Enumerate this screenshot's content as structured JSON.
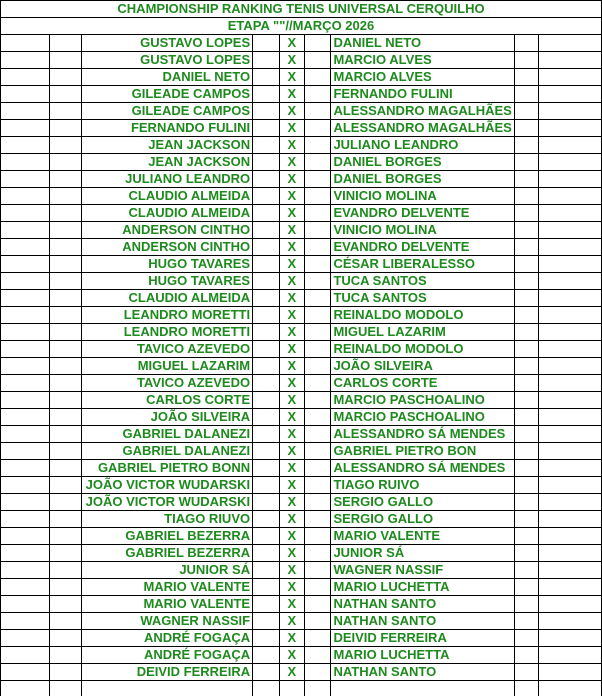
{
  "title": "CHAMPIONSHIP RANKING TENIS UNIVERSAL CERQUILHO",
  "subtitle": "ETAPA \"\"//MARÇO 2026",
  "text_color": "#1e8a1e",
  "matches": [
    {
      "p1": "GUSTAVO LOPES",
      "vs": "X",
      "p2": "DANIEL NETO"
    },
    {
      "p1": "GUSTAVO LOPES",
      "vs": "X",
      "p2": "MARCIO ALVES"
    },
    {
      "p1": "DANIEL NETO",
      "vs": "X",
      "p2": "MARCIO ALVES"
    },
    {
      "p1": "GILEADE CAMPOS",
      "vs": "X",
      "p2": "FERNANDO FULINI"
    },
    {
      "p1": "GILEADE CAMPOS",
      "vs": "X",
      "p2": "ALESSANDRO MAGALHÃES"
    },
    {
      "p1": "FERNANDO FULINI",
      "vs": "X",
      "p2": "ALESSANDRO MAGALHÃES"
    },
    {
      "p1": "JEAN JACKSON",
      "vs": "X",
      "p2": "JULIANO LEANDRO"
    },
    {
      "p1": "JEAN JACKSON",
      "vs": "X",
      "p2": "DANIEL BORGES"
    },
    {
      "p1": "JULIANO LEANDRO",
      "vs": "X",
      "p2": "DANIEL BORGES"
    },
    {
      "p1": "CLAUDIO ALMEIDA",
      "vs": "X",
      "p2": "VINICIO MOLINA"
    },
    {
      "p1": "CLAUDIO ALMEIDA",
      "vs": "X",
      "p2": "EVANDRO DELVENTE"
    },
    {
      "p1": "ANDERSON CINTHO",
      "vs": "X",
      "p2": "VINICIO MOLINA"
    },
    {
      "p1": "ANDERSON CINTHO",
      "vs": "X",
      "p2": "EVANDRO DELVENTE"
    },
    {
      "p1": "HUGO TAVARES",
      "vs": "X",
      "p2": "CÉSAR LIBERALESSO"
    },
    {
      "p1": "HUGO TAVARES",
      "vs": "X",
      "p2": "TUCA SANTOS"
    },
    {
      "p1": "CLAUDIO ALMEIDA",
      "vs": "X",
      "p2": "TUCA SANTOS"
    },
    {
      "p1": "LEANDRO MORETTI",
      "vs": "X",
      "p2": "REINALDO MODOLO"
    },
    {
      "p1": "LEANDRO MORETTI",
      "vs": "X",
      "p2": "MIGUEL LAZARIM"
    },
    {
      "p1": "TAVICO AZEVEDO",
      "vs": "X",
      "p2": "REINALDO MODOLO"
    },
    {
      "p1": "MIGUEL LAZARIM",
      "vs": "X",
      "p2": "JOÃO SILVEIRA"
    },
    {
      "p1": "TAVICO AZEVEDO",
      "vs": "X",
      "p2": "CARLOS CORTE"
    },
    {
      "p1": "CARLOS CORTE",
      "vs": "X",
      "p2": "MARCIO PASCHOALINO"
    },
    {
      "p1": "JOÃO SILVEIRA",
      "vs": "X",
      "p2": "MARCIO PASCHOALINO"
    },
    {
      "p1": "GABRIEL DALANEZI",
      "vs": "X",
      "p2": "ALESSANDRO SÁ MENDES"
    },
    {
      "p1": "GABRIEL DALANEZI",
      "vs": "X",
      "p2": "GABRIEL PIETRO BON"
    },
    {
      "p1": "GABRIEL PIETRO BONN",
      "vs": "X",
      "p2": "ALESSANDRO SÁ MENDES"
    },
    {
      "p1": "JOÃO VICTOR WUDARSKI",
      "vs": "X",
      "p2": "TIAGO RUIVO"
    },
    {
      "p1": "JOÃO VICTOR WUDARSKI",
      "vs": "X",
      "p2": "SERGIO GALLO"
    },
    {
      "p1": "TIAGO RIUVO",
      "vs": "X",
      "p2": "SERGIO GALLO"
    },
    {
      "p1": "GABRIEL BEZERRA",
      "vs": "X",
      "p2": "MARIO VALENTE"
    },
    {
      "p1": "GABRIEL BEZERRA",
      "vs": "X",
      "p2": "JUNIOR SÁ"
    },
    {
      "p1": "JUNIOR SÁ",
      "vs": "X",
      "p2": "WAGNER NASSIF"
    },
    {
      "p1": "MARIO VALENTE",
      "vs": "X",
      "p2": "MARIO LUCHETTA"
    },
    {
      "p1": "MARIO VALENTE",
      "vs": "X",
      "p2": "NATHAN SANTO"
    },
    {
      "p1": "WAGNER NASSIF",
      "vs": "X",
      "p2": "NATHAN SANTO"
    },
    {
      "p1": "ANDRÉ FOGAÇA",
      "vs": "X",
      "p2": "DEIVID FERREIRA"
    },
    {
      "p1": "ANDRÉ FOGAÇA",
      "vs": "X",
      "p2": "MARIO LUCHETTA"
    },
    {
      "p1": "DEIVID FERREIRA",
      "vs": "X",
      "p2": "NATHAN SANTO"
    },
    {
      "p1": "",
      "vs": "",
      "p2": ""
    }
  ]
}
